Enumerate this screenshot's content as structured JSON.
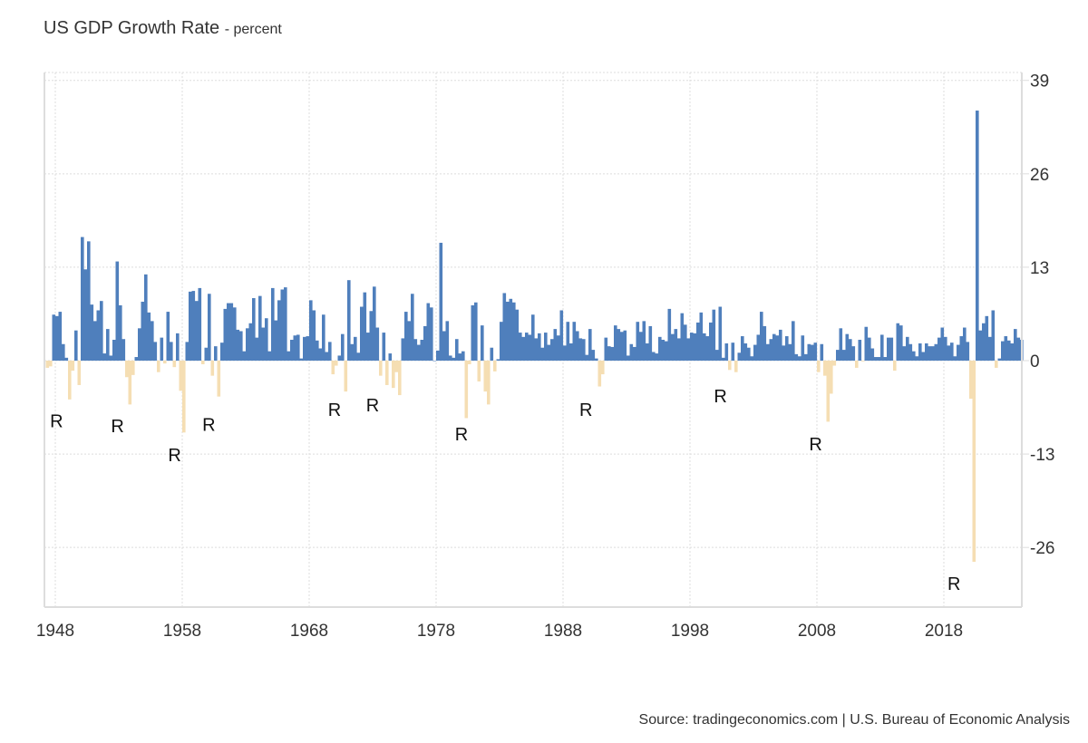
{
  "chart_data": {
    "type": "bar",
    "title": "US GDP Growth Rate",
    "subtitle": "- percent",
    "xlabel": "",
    "ylabel": "",
    "start_quarter": "1947Q2",
    "frequency": "quarterly",
    "ylim": [
      -34.3,
      40.1
    ],
    "y_ticks": [
      "39",
      "26",
      "13",
      "0",
      "-13",
      "-26"
    ],
    "y_tick_values": [
      39,
      26,
      13,
      0,
      -13,
      -26
    ],
    "x_ticks": [
      "1948",
      "1958",
      "1968",
      "1978",
      "1988",
      "1998",
      "2008",
      "2018"
    ],
    "x_tick_values": [
      1948,
      1958,
      1968,
      1978,
      1988,
      1998,
      2008,
      2018
    ],
    "grid": true,
    "colors": {
      "positive": "#4f7fbc",
      "negative": "#f5deb3"
    },
    "values": [
      -1.0,
      -0.8,
      6.4,
      6.2,
      6.8,
      2.3,
      0.4,
      -5.4,
      -1.4,
      4.2,
      -3.4,
      17.2,
      12.7,
      16.6,
      7.8,
      5.5,
      7.0,
      8.3,
      1.0,
      4.4,
      0.7,
      2.9,
      13.8,
      7.7,
      3.0,
      -2.3,
      -6.1,
      -2.0,
      0.5,
      4.5,
      8.2,
      12.0,
      6.7,
      5.5,
      2.6,
      -1.6,
      3.2,
      -0.4,
      6.8,
      2.6,
      -0.9,
      3.8,
      -4.2,
      -10.0,
      2.6,
      9.6,
      9.7,
      8.3,
      10.1,
      -0.5,
      1.8,
      9.3,
      -2.1,
      2.0,
      -5.0,
      2.5,
      7.2,
      8.0,
      8.0,
      7.4,
      4.3,
      4.1,
      1.3,
      4.5,
      5.2,
      8.7,
      3.2,
      9.0,
      4.6,
      5.9,
      1.3,
      10.1,
      5.6,
      8.4,
      9.9,
      10.2,
      1.3,
      2.9,
      3.5,
      3.6,
      0.3,
      3.3,
      3.4,
      8.4,
      7.0,
      2.8,
      1.7,
      6.4,
      1.2,
      2.6,
      -1.9,
      -0.7,
      0.7,
      3.7,
      -4.3,
      11.2,
      2.3,
      3.3,
      1.1,
      7.5,
      9.5,
      3.9,
      6.9,
      10.3,
      4.6,
      -2.1,
      3.9,
      -3.4,
      1.0,
      -3.8,
      -1.6,
      -4.8,
      3.1,
      6.8,
      5.5,
      9.3,
      3.0,
      2.2,
      2.9,
      4.8,
      8.0,
      7.4,
      0.0,
      1.4,
      16.4,
      4.1,
      5.5,
      0.7,
      0.4,
      3.0,
      1.0,
      1.3,
      -8.0,
      -0.5,
      7.7,
      8.1,
      -2.9,
      4.9,
      -4.3,
      -6.1,
      1.8,
      -1.5,
      0.2,
      5.4,
      9.4,
      8.2,
      8.6,
      8.1,
      7.1,
      3.9,
      3.3,
      3.9,
      3.6,
      6.4,
      3.1,
      3.8,
      1.8,
      3.9,
      2.2,
      3.0,
      4.4,
      3.5,
      7.0,
      2.1,
      5.4,
      2.4,
      5.4,
      4.1,
      3.1,
      3.0,
      0.8,
      4.4,
      1.5,
      0.3,
      -3.6,
      -1.9,
      3.2,
      2.0,
      1.9,
      4.9,
      4.4,
      4.0,
      4.2,
      0.7,
      2.3,
      1.9,
      5.4,
      4.0,
      5.5,
      2.4,
      4.8,
      1.2,
      1.0,
      3.3,
      2.9,
      2.7,
      7.2,
      3.7,
      4.4,
      3.1,
      6.6,
      5.0,
      3.1,
      3.9,
      3.8,
      5.3,
      6.7,
      3.8,
      3.4,
      5.3,
      7.1,
      1.5,
      7.5,
      0.4,
      2.4,
      -1.3,
      2.5,
      -1.6,
      1.1,
      3.4,
      2.4,
      1.8,
      0.6,
      2.2,
      3.6,
      6.8,
      4.8,
      2.3,
      3.0,
      3.7,
      3.5,
      4.3,
      2.1,
      3.4,
      2.3,
      5.5,
      0.9,
      0.6,
      3.5,
      0.9,
      2.3,
      2.2,
      2.5,
      -1.6,
      2.3,
      -2.1,
      -8.5,
      -4.6,
      -0.7,
      1.5,
      4.5,
      1.5,
      3.7,
      3.0,
      2.0,
      -1.0,
      2.9,
      -0.1,
      4.7,
      3.2,
      1.7,
      0.5,
      0.5,
      3.6,
      0.5,
      3.2,
      3.2,
      -1.4,
      5.2,
      4.9,
      2.0,
      3.3,
      2.3,
      1.3,
      0.6,
      2.4,
      1.2,
      2.4,
      2.0,
      2.0,
      2.3,
      3.2,
      4.6,
      3.3,
      2.1,
      2.5,
      0.6,
      2.2,
      3.4,
      4.6,
      2.6,
      -5.3,
      -28.0,
      34.8,
      4.2,
      5.2,
      6.2,
      3.3,
      7.0,
      -1.0,
      0.3,
      2.7,
      3.4,
      2.8,
      2.4,
      4.4,
      3.2,
      2.9
    ],
    "annotations": [
      {
        "text": "R",
        "x": 1948.1,
        "y": -8.4
      },
      {
        "text": "R",
        "x": 1952.9,
        "y": -9.1
      },
      {
        "text": "R",
        "x": 1957.4,
        "y": -13.1
      },
      {
        "text": "R",
        "x": 1960.1,
        "y": -8.9
      },
      {
        "text": "R",
        "x": 1970.0,
        "y": -6.8
      },
      {
        "text": "R",
        "x": 1973.0,
        "y": -6.2
      },
      {
        "text": "R",
        "x": 1980.0,
        "y": -10.2
      },
      {
        "text": "R",
        "x": 1989.8,
        "y": -6.8
      },
      {
        "text": "R",
        "x": 2000.4,
        "y": -4.9
      },
      {
        "text": "R",
        "x": 2007.9,
        "y": -11.6
      },
      {
        "text": "R",
        "x": 2018.8,
        "y": -31.0
      }
    ],
    "source": "Source: tradingeconomics.com | U.S. Bureau of Economic Analysis"
  }
}
